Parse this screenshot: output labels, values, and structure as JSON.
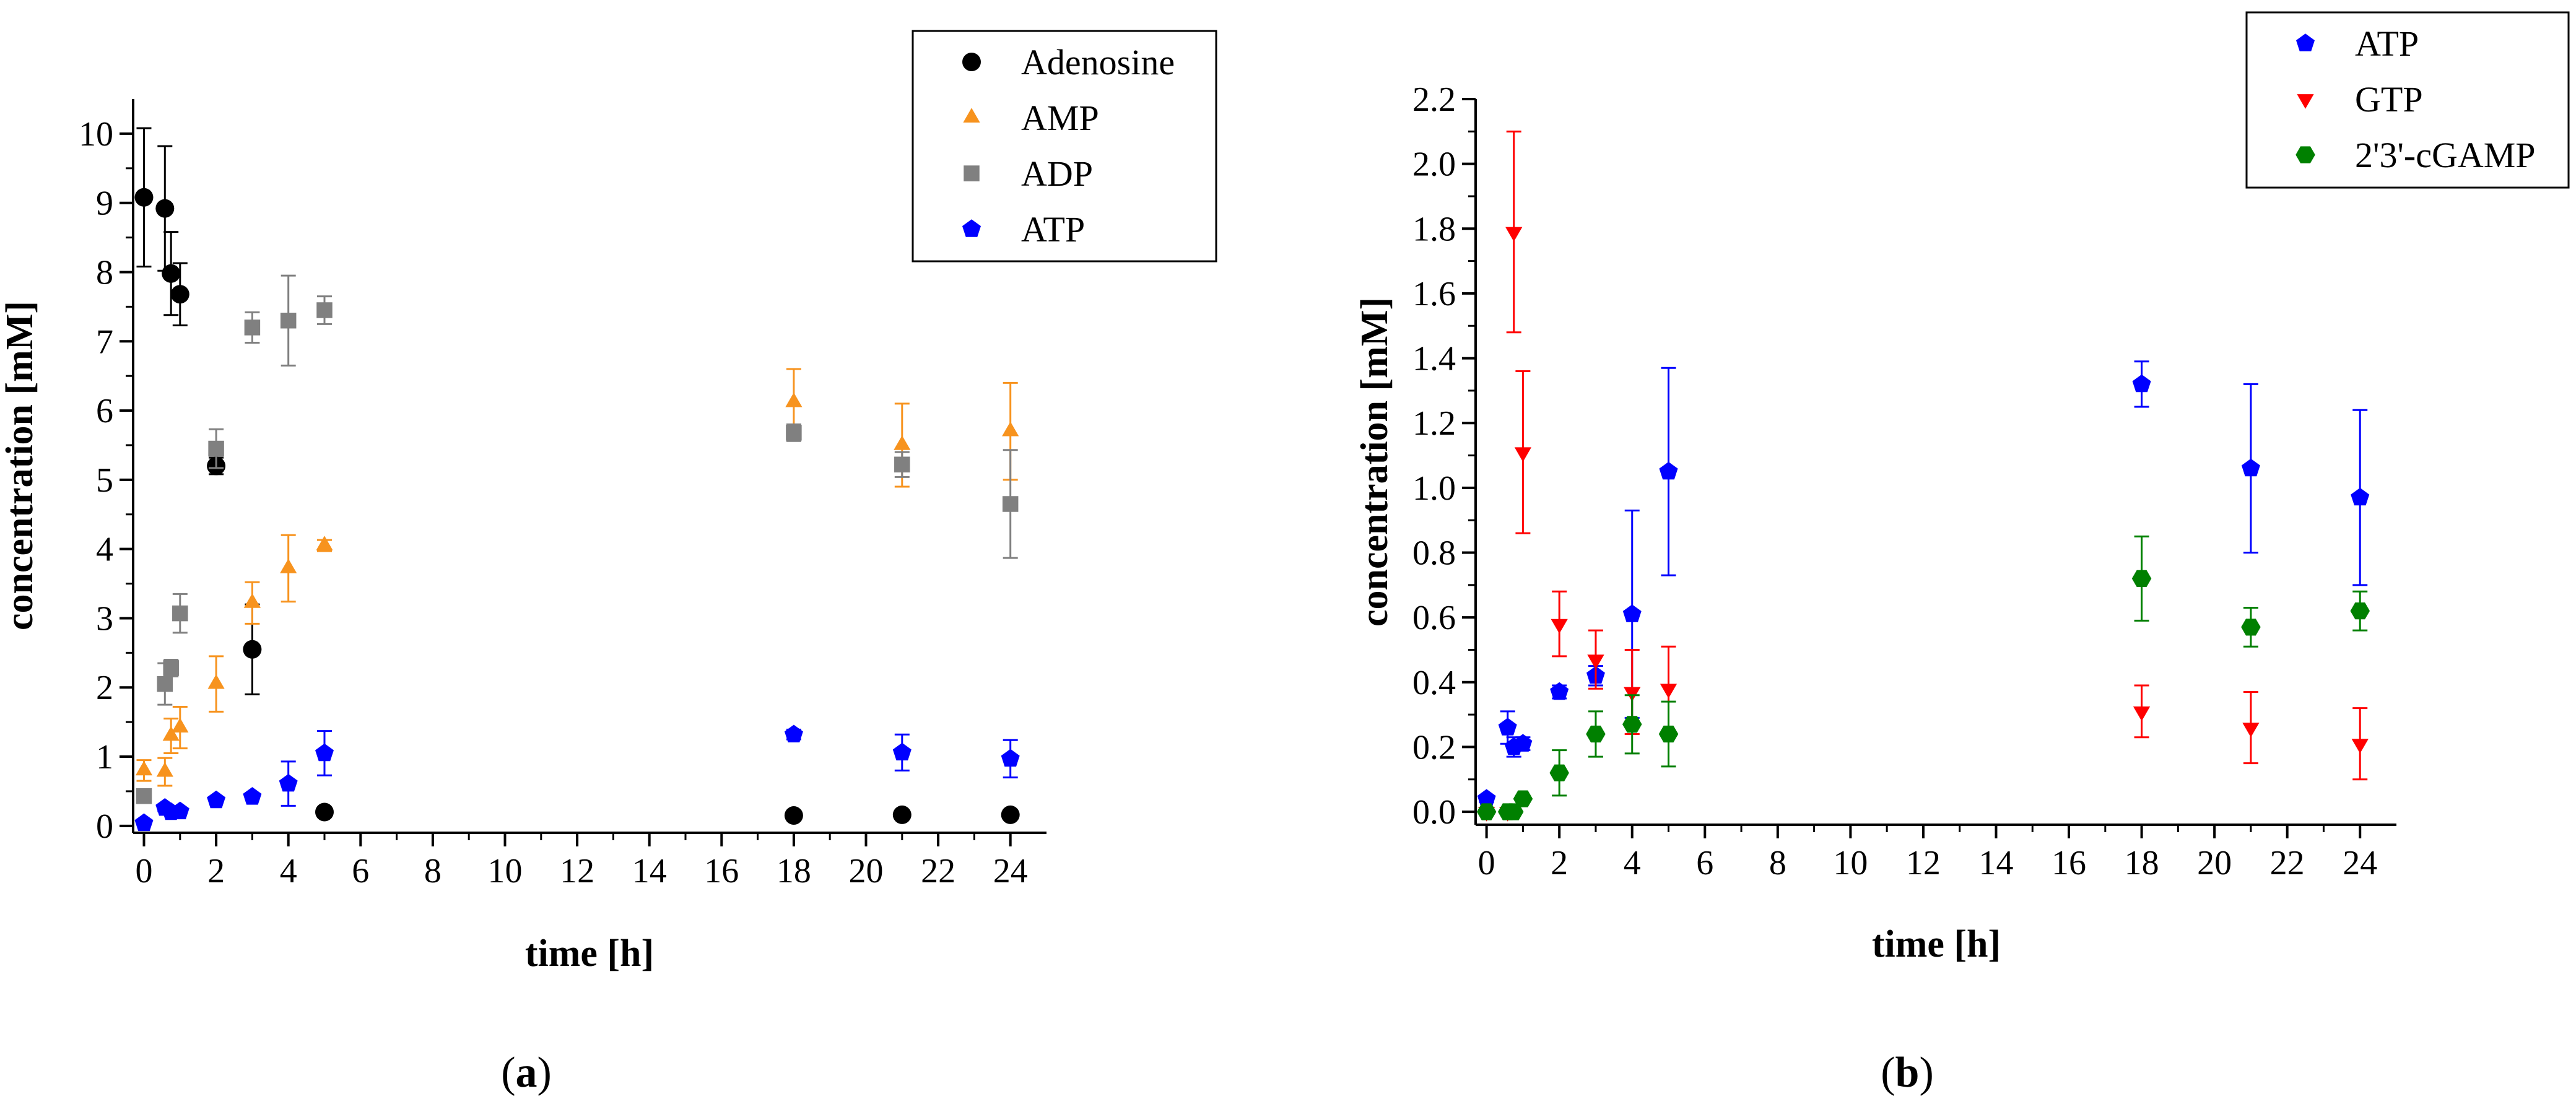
{
  "chart_data": [
    {
      "type": "scatter",
      "panel_label_prefix": "(",
      "panel_label": "a",
      "panel_label_suffix": ")",
      "xlabel": "time [h]",
      "ylabel": "concentration [mM]",
      "xlim": [
        -0.3,
        25
      ],
      "ylim": [
        -0.1,
        10.5
      ],
      "xticks": [
        0,
        2,
        4,
        6,
        8,
        10,
        12,
        14,
        16,
        18,
        20,
        22,
        24
      ],
      "xtick_labels": [
        "0",
        "2",
        "4",
        "6",
        "8",
        "10",
        "12",
        "14",
        "16",
        "18",
        "20",
        "22",
        "24"
      ],
      "yticks": [
        0,
        1,
        2,
        3,
        4,
        5,
        6,
        7,
        8,
        9,
        10
      ],
      "ytick_labels": [
        "0",
        "1",
        "2",
        "3",
        "4",
        "5",
        "6",
        "7",
        "8",
        "9",
        "10"
      ],
      "legend_position": "top-right",
      "series": [
        {
          "name": "Adenosine",
          "marker": "circle",
          "color": "#000000",
          "x": [
            0,
            0.58,
            0.75,
            1,
            2,
            3,
            5,
            18,
            21,
            24
          ],
          "y": [
            9.08,
            8.92,
            7.98,
            7.68,
            5.2,
            2.55,
            0.2,
            0.15,
            0.16,
            0.16
          ],
          "err": [
            1.0,
            0.9,
            0.6,
            0.45,
            0.12,
            0.65,
            0.05,
            0.04,
            0.03,
            0.03
          ]
        },
        {
          "name": "AMP",
          "marker": "triangle-up",
          "color": "#f7931e",
          "x": [
            0,
            0.58,
            0.75,
            1,
            2,
            3,
            4,
            5,
            18,
            21,
            24
          ],
          "y": [
            0.8,
            0.78,
            1.3,
            1.42,
            2.05,
            3.22,
            3.72,
            4.05,
            6.12,
            5.5,
            5.7
          ],
          "err": [
            0.15,
            0.2,
            0.25,
            0.3,
            0.4,
            0.3,
            0.48,
            0.08,
            0.48,
            0.6,
            0.7
          ]
        },
        {
          "name": "ADP",
          "marker": "square",
          "color": "#808080",
          "x": [
            0,
            0.58,
            0.75,
            1,
            2,
            3,
            4,
            5,
            18,
            21,
            24
          ],
          "y": [
            0.43,
            2.05,
            2.28,
            3.07,
            5.45,
            7.2,
            7.3,
            7.45,
            5.68,
            5.22,
            4.65
          ],
          "err": [
            0.1,
            0.3,
            0.12,
            0.28,
            0.28,
            0.22,
            0.65,
            0.2,
            0.12,
            0.18,
            0.78
          ]
        },
        {
          "name": "ATP",
          "marker": "pentagon",
          "color": "#0000ff",
          "x": [
            0,
            0.58,
            0.75,
            1,
            2,
            3,
            4,
            5,
            18,
            21,
            24
          ],
          "y": [
            0.04,
            0.26,
            0.2,
            0.21,
            0.37,
            0.42,
            0.61,
            1.05,
            1.32,
            1.06,
            0.97
          ],
          "err": [
            0.02,
            0.05,
            0.04,
            0.02,
            0.02,
            0.03,
            0.32,
            0.32,
            0.07,
            0.26,
            0.27
          ]
        }
      ]
    },
    {
      "type": "scatter",
      "panel_label_prefix": "(",
      "panel_label": "b",
      "panel_label_suffix": ")",
      "xlabel": "time [h]",
      "ylabel": "concentration [mM]",
      "xlim": [
        -0.3,
        25
      ],
      "ylim": [
        -0.04,
        2.2
      ],
      "xticks": [
        0,
        2,
        4,
        6,
        8,
        10,
        12,
        14,
        16,
        18,
        20,
        22,
        24
      ],
      "xtick_labels": [
        "0",
        "2",
        "4",
        "6",
        "8",
        "10",
        "12",
        "14",
        "16",
        "18",
        "20",
        "22",
        "24"
      ],
      "yticks": [
        0,
        0.2,
        0.4,
        0.6,
        0.8,
        1.0,
        1.2,
        1.4,
        1.6,
        1.8,
        2.0,
        2.2
      ],
      "ytick_labels": [
        "0.0",
        "0.2",
        "0.4",
        "0.6",
        "0.8",
        "1.0",
        "1.2",
        "1.4",
        "1.6",
        "1.8",
        "2.0",
        "2.2"
      ],
      "legend_position": "top-right",
      "series": [
        {
          "name": "ATP",
          "marker": "pentagon",
          "color": "#0000ff",
          "x": [
            0,
            0.58,
            0.75,
            1,
            2,
            3,
            4,
            5,
            18,
            21,
            24
          ],
          "y": [
            0.04,
            0.26,
            0.2,
            0.21,
            0.37,
            0.42,
            0.61,
            1.05,
            1.32,
            1.06,
            0.97
          ],
          "err": [
            0.01,
            0.05,
            0.03,
            0.02,
            0.02,
            0.03,
            0.32,
            0.32,
            0.07,
            0.26,
            0.27
          ]
        },
        {
          "name": "GTP",
          "marker": "triangle-down",
          "color": "#ff0000",
          "x": [
            0,
            0.58,
            0.75,
            1,
            2,
            3,
            4,
            5,
            18,
            21,
            24
          ],
          "y": [
            0.0,
            0.0,
            1.79,
            1.11,
            0.58,
            0.47,
            0.37,
            0.38,
            0.31,
            0.26,
            0.21
          ],
          "err": [
            0.0,
            0.0,
            0.31,
            0.25,
            0.1,
            0.09,
            0.13,
            0.13,
            0.08,
            0.11,
            0.11
          ]
        },
        {
          "name": "2'3'-cGAMP",
          "marker": "hexagon",
          "color": "#008000",
          "x": [
            0,
            0.58,
            0.75,
            1,
            2,
            3,
            4,
            5,
            18,
            21,
            24
          ],
          "y": [
            0.0,
            0.0,
            0.0,
            0.04,
            0.12,
            0.24,
            0.27,
            0.24,
            0.72,
            0.57,
            0.62
          ],
          "err": [
            0.0,
            0.0,
            0.0,
            0.01,
            0.07,
            0.07,
            0.09,
            0.1,
            0.13,
            0.06,
            0.06
          ]
        }
      ]
    }
  ]
}
